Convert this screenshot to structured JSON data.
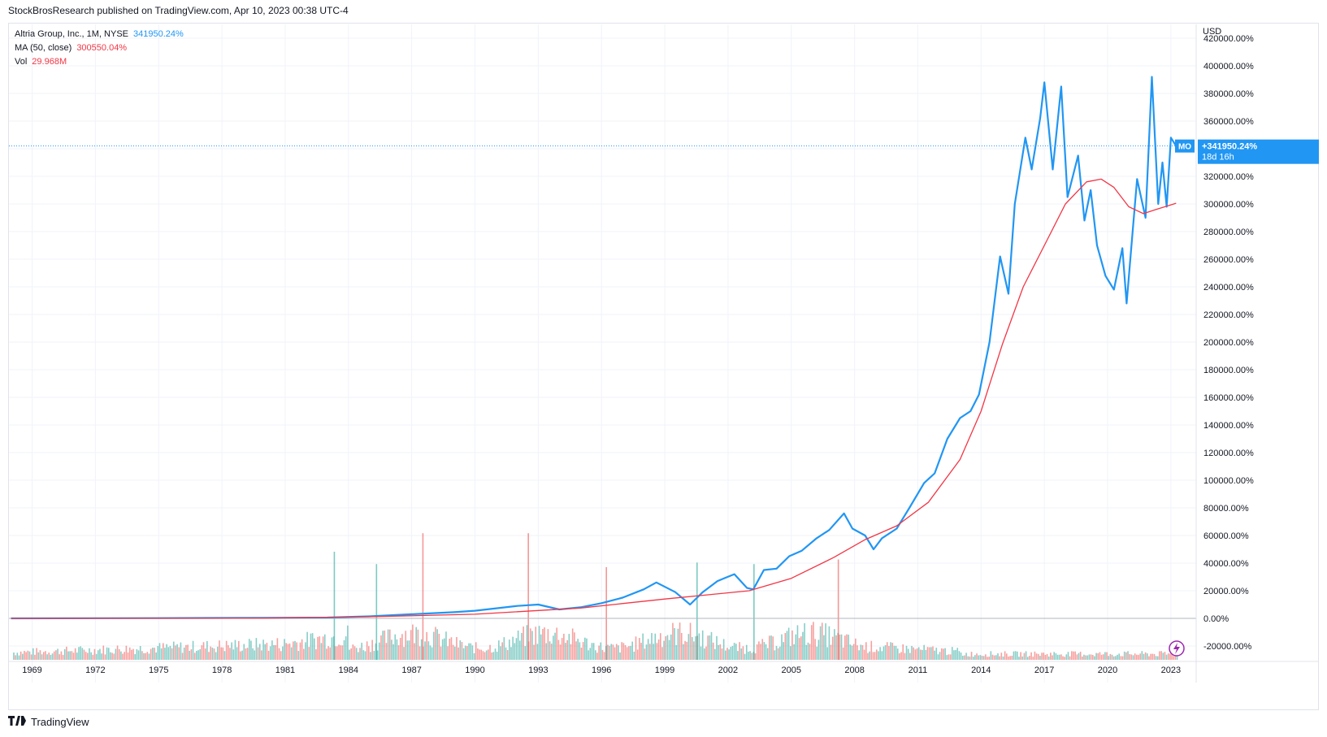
{
  "header": {
    "publisher_line": "StockBrosResearch published on TradingView.com, Apr 10, 2023 00:38 UTC-4"
  },
  "legend": {
    "symbol_label": "Altria Group, Inc., 1M, NYSE",
    "symbol_value": "341950.24%",
    "ma_label": "MA (50, close)",
    "ma_value": "300550.04%",
    "vol_label": "Vol",
    "vol_value": "29.968M"
  },
  "price_tag": {
    "ticker": "MO",
    "value": "+341950.24%",
    "countdown": "18d 16h"
  },
  "footer": {
    "brand": "TradingView",
    "logo_glyph": "17"
  },
  "colors": {
    "price_line": "#2196f3",
    "ma_line": "#f23645",
    "vol_up": "#26a69a",
    "vol_down": "#ef5350",
    "grid": "#f0f3fa",
    "zero_line": "#b2b5be"
  },
  "chart_data": {
    "type": "line",
    "currency_label": "USD",
    "y_unit": "percent",
    "ylim": [
      -30000,
      430000
    ],
    "y_ticks": [
      420000,
      400000,
      380000,
      360000,
      340000,
      320000,
      300000,
      280000,
      260000,
      240000,
      220000,
      200000,
      180000,
      160000,
      140000,
      120000,
      100000,
      80000,
      60000,
      40000,
      20000,
      0,
      -20000
    ],
    "y_tick_labels": [
      "420000.00%",
      "400000.00%",
      "380000.00%",
      "360000.00%",
      "340000.00%",
      "320000.00%",
      "300000.00%",
      "280000.00%",
      "260000.00%",
      "240000.00%",
      "220000.00%",
      "200000.00%",
      "180000.00%",
      "160000.00%",
      "140000.00%",
      "120000.00%",
      "100000.00%",
      "80000.00%",
      "60000.00%",
      "40000.00%",
      "20000.00%",
      "0.00%",
      "-20000.00%"
    ],
    "xlim": [
      1967.9,
      2024.2
    ],
    "x_ticks": [
      1969,
      1972,
      1975,
      1978,
      1981,
      1984,
      1987,
      1990,
      1993,
      1996,
      1999,
      2002,
      2005,
      2008,
      2011,
      2014,
      2017,
      2020,
      2023
    ],
    "series": [
      {
        "name": "Altria Group, Inc., 1M, NYSE",
        "x": [
          1968,
          1975,
          1980,
          1983,
          1985,
          1987,
          1989,
          1990,
          1992,
          1993,
          1994,
          1995,
          1996,
          1997,
          1998,
          1998.6,
          1999.5,
          2000.2,
          2000.8,
          2001.5,
          2002.3,
          2002.9,
          2003.2,
          2003.7,
          2004.3,
          2004.9,
          2005.5,
          2006.2,
          2006.8,
          2007.5,
          2007.9,
          2008.5,
          2008.9,
          2009.3,
          2010,
          2010.6,
          2011.3,
          2011.8,
          2012.4,
          2013,
          2013.5,
          2013.9,
          2014.4,
          2014.9,
          2015.3,
          2015.6,
          2016.1,
          2016.4,
          2016.8,
          2017.0,
          2017.4,
          2017.8,
          2018.1,
          2018.6,
          2018.9,
          2019.2,
          2019.5,
          2019.9,
          2020.3,
          2020.7,
          2020.9,
          2021.2,
          2021.4,
          2021.8,
          2022.1,
          2022.4,
          2022.6,
          2022.8,
          2023.0,
          2023.25
        ],
        "y": [
          0,
          200,
          400,
          600,
          1500,
          3000,
          4500,
          5500,
          9000,
          10000,
          6500,
          8000,
          11000,
          15000,
          21000,
          26000,
          19000,
          10000,
          19000,
          27000,
          32000,
          22000,
          21000,
          35000,
          36000,
          45000,
          49000,
          58000,
          64000,
          76000,
          65000,
          60000,
          50000,
          58000,
          65000,
          80000,
          98000,
          105000,
          130000,
          145000,
          150000,
          162000,
          200000,
          262000,
          235000,
          300000,
          348000,
          325000,
          362000,
          388000,
          325000,
          385000,
          305000,
          335000,
          288000,
          310000,
          270000,
          248000,
          238000,
          268000,
          228000,
          282000,
          318000,
          290000,
          392000,
          300000,
          330000,
          298000,
          348000,
          341950
        ]
      },
      {
        "name": "MA (50, close)",
        "x": [
          1968,
          1980,
          1985,
          1990,
          1995,
          1999,
          2001,
          2003,
          2005,
          2007,
          2008.5,
          2010,
          2011.5,
          2013,
          2014,
          2015,
          2016,
          2017,
          2018,
          2019,
          2019.7,
          2020.3,
          2021,
          2021.7,
          2022.3,
          2023.25
        ],
        "y": [
          0,
          200,
          1200,
          3000,
          7500,
          14000,
          17000,
          20000,
          29000,
          44000,
          57000,
          67000,
          84000,
          115000,
          150000,
          198000,
          240000,
          270000,
          300000,
          316000,
          318000,
          312000,
          298000,
          293000,
          296000,
          300550
        ]
      }
    ],
    "volume": [
      {
        "x": 1983.3,
        "v": 70,
        "dir": "up"
      },
      {
        "x": 1985.3,
        "v": 62,
        "dir": "up"
      },
      {
        "x": 1987.5,
        "v": 82,
        "dir": "down"
      },
      {
        "x": 1992.5,
        "v": 82,
        "dir": "down"
      },
      {
        "x": 1996.2,
        "v": 60,
        "dir": "down"
      },
      {
        "x": 2000.5,
        "v": 63,
        "dir": "up"
      },
      {
        "x": 2003.2,
        "v": 62,
        "dir": "up"
      },
      {
        "x": 2007.2,
        "v": 65,
        "dir": "down"
      }
    ]
  }
}
